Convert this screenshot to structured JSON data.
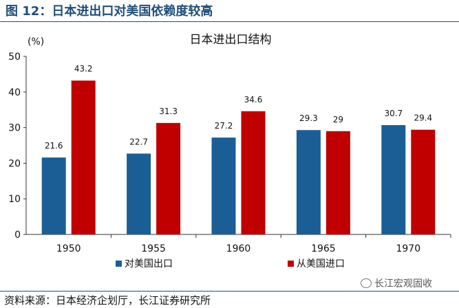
{
  "figure": {
    "title": "图 12：日本进出口对美国依赖度较高",
    "source": "资料来源：日本经济企划厅，长江证券研究所",
    "watermark": "长江宏观固收",
    "watermark_icon": "wechat-icon"
  },
  "chart_data": {
    "type": "bar",
    "title": "日本进出口结构",
    "unit_label": "(%)",
    "categories": [
      "1950",
      "1955",
      "1960",
      "1965",
      "1970"
    ],
    "series": [
      {
        "name": "对美国出口",
        "color": "#1b5e96",
        "values": [
          21.6,
          22.7,
          27.2,
          29.3,
          30.7
        ],
        "labels": [
          "21.6",
          "22.7",
          "27.2",
          "29.3",
          "30.7"
        ]
      },
      {
        "name": "从美国进口",
        "color": "#c00000",
        "values": [
          43.2,
          31.3,
          34.6,
          29,
          29.4
        ],
        "labels": [
          "43.2",
          "31.3",
          "34.6",
          "29",
          "29.4"
        ]
      }
    ],
    "ylim": [
      0,
      50
    ],
    "yticks": [
      "0",
      "10",
      "20",
      "30",
      "40",
      "50"
    ],
    "ytick_values": [
      0,
      10,
      20,
      30,
      40,
      50
    ],
    "grid": false,
    "legend_position": "bottom"
  }
}
